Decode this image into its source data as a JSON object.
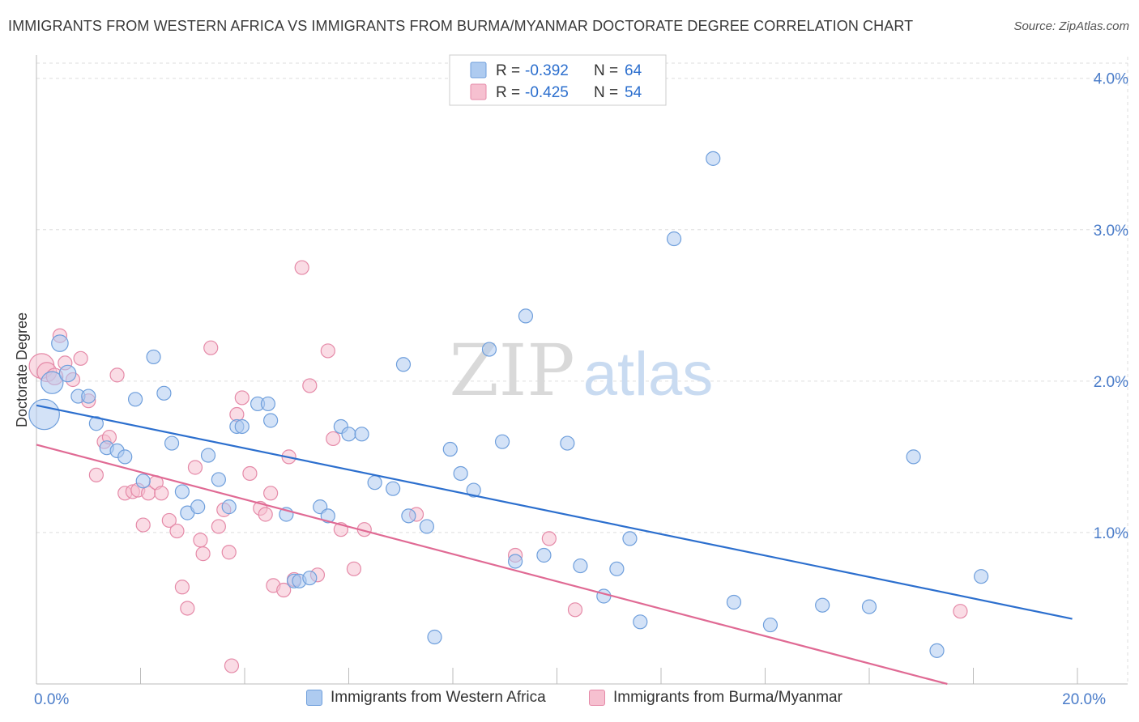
{
  "title": "IMMIGRANTS FROM WESTERN AFRICA VS IMMIGRANTS FROM BURMA/MYANMAR DOCTORATE DEGREE CORRELATION CHART",
  "source": "Source: ZipAtlas.com",
  "watermark": {
    "zip": "ZIP",
    "atlas": "atlas"
  },
  "colors": {
    "blue_fill": "#aecbf0",
    "blue_stroke": "#6f9fdc",
    "blue_line": "#2c6fce",
    "pink_fill": "#f6c0d0",
    "pink_stroke": "#e58aa8",
    "pink_line": "#e06a94",
    "axis_text": "#4a7cc9",
    "grid": "#dddddd"
  },
  "legend_stats": [
    {
      "r_label": "R =",
      "r_value": "-0.392",
      "n_label": "N =",
      "n_value": "64"
    },
    {
      "r_label": "R =",
      "r_value": "-0.425",
      "n_label": "N =",
      "n_value": "54"
    }
  ],
  "legend_bottom": [
    "Immigrants from Western Africa",
    "Immigrants from Burma/Myanmar"
  ],
  "chart_data": {
    "type": "scatter",
    "title": "IMMIGRANTS FROM WESTERN AFRICA VS IMMIGRANTS FROM BURMA/MYANMAR DOCTORATE DEGREE CORRELATION CHART",
    "xlabel": "",
    "ylabel": "Doctorate Degree",
    "xlim": [
      0,
      20
    ],
    "ylim": [
      0,
      4.1
    ],
    "x_tick_labels": [
      {
        "value": 0,
        "label": "0.0%"
      },
      {
        "value": 20,
        "label": "20.0%"
      }
    ],
    "y_ticks": [
      {
        "value": 1,
        "label": "1.0%"
      },
      {
        "value": 2,
        "label": "2.0%"
      },
      {
        "value": 3,
        "label": "3.0%"
      },
      {
        "value": 4,
        "label": "4.0%"
      }
    ],
    "series": [
      {
        "name": "Immigrants from Western Africa",
        "r": -0.392,
        "n": 64,
        "trend": {
          "x": [
            0,
            19.9
          ],
          "y": [
            1.84,
            0.43
          ]
        },
        "points": [
          [
            0.15,
            1.78,
            2.2
          ],
          [
            0.3,
            1.99,
            1.6
          ],
          [
            0.45,
            2.25,
            1.2
          ],
          [
            0.6,
            2.05,
            1.2
          ],
          [
            0.8,
            1.9,
            1
          ],
          [
            1.0,
            1.9,
            1
          ],
          [
            1.15,
            1.72,
            1
          ],
          [
            1.35,
            1.56,
            1
          ],
          [
            1.55,
            1.54,
            1
          ],
          [
            1.7,
            1.5,
            1
          ],
          [
            1.9,
            1.88,
            1
          ],
          [
            2.05,
            1.34,
            1
          ],
          [
            2.25,
            2.16,
            1
          ],
          [
            2.45,
            1.92,
            1
          ],
          [
            2.6,
            1.59,
            1
          ],
          [
            2.8,
            1.27,
            1
          ],
          [
            2.9,
            1.13,
            1
          ],
          [
            3.1,
            1.17,
            1
          ],
          [
            3.3,
            1.51,
            1
          ],
          [
            3.5,
            1.35,
            1
          ],
          [
            3.7,
            1.17,
            1
          ],
          [
            3.85,
            1.7,
            1
          ],
          [
            3.95,
            1.7,
            1
          ],
          [
            4.25,
            1.85,
            1
          ],
          [
            4.45,
            1.85,
            1
          ],
          [
            4.5,
            1.74,
            1
          ],
          [
            4.8,
            1.12,
            1
          ],
          [
            4.95,
            0.68,
            1
          ],
          [
            5.05,
            0.68,
            1
          ],
          [
            5.25,
            0.7,
            1
          ],
          [
            5.45,
            1.17,
            1
          ],
          [
            5.6,
            1.11,
            1
          ],
          [
            5.85,
            1.7,
            1
          ],
          [
            6.0,
            1.65,
            1
          ],
          [
            6.25,
            1.65,
            1
          ],
          [
            6.5,
            1.33,
            1
          ],
          [
            6.85,
            1.29,
            1
          ],
          [
            7.05,
            2.11,
            1
          ],
          [
            7.15,
            1.11,
            1
          ],
          [
            7.5,
            1.04,
            1
          ],
          [
            7.65,
            0.31,
            1
          ],
          [
            7.95,
            1.55,
            1
          ],
          [
            8.15,
            1.39,
            1
          ],
          [
            8.4,
            1.28,
            1
          ],
          [
            8.7,
            2.21,
            1
          ],
          [
            8.95,
            1.6,
            1
          ],
          [
            9.2,
            0.81,
            1
          ],
          [
            9.4,
            2.43,
            1
          ],
          [
            9.75,
            0.85,
            1
          ],
          [
            10.2,
            1.59,
            1
          ],
          [
            10.45,
            0.78,
            1
          ],
          [
            10.9,
            0.58,
            1
          ],
          [
            11.15,
            0.76,
            1
          ],
          [
            11.4,
            0.96,
            1
          ],
          [
            11.6,
            0.41,
            1
          ],
          [
            12.25,
            2.94,
            1
          ],
          [
            13.0,
            3.47,
            1
          ],
          [
            13.4,
            0.54,
            1
          ],
          [
            14.1,
            0.39,
            1
          ],
          [
            15.1,
            0.52,
            1
          ],
          [
            16.0,
            0.51,
            1
          ],
          [
            16.85,
            1.5,
            1
          ],
          [
            17.3,
            0.22,
            1
          ],
          [
            18.15,
            0.71,
            1
          ]
        ]
      },
      {
        "name": "Immigrants from Burma/Myanmar",
        "r": -0.425,
        "n": 54,
        "trend": {
          "x": [
            0,
            17.5
          ],
          "y": [
            1.58,
            0.0
          ]
        },
        "points": [
          [
            0.1,
            2.1,
            1.8
          ],
          [
            0.2,
            2.06,
            1.4
          ],
          [
            0.35,
            2.03,
            1.2
          ],
          [
            0.45,
            2.3,
            1
          ],
          [
            0.55,
            2.12,
            1
          ],
          [
            0.7,
            2.01,
            1
          ],
          [
            0.85,
            2.15,
            1
          ],
          [
            1.0,
            1.87,
            1
          ],
          [
            1.15,
            1.38,
            1
          ],
          [
            1.3,
            1.6,
            1
          ],
          [
            1.4,
            1.63,
            1
          ],
          [
            1.55,
            2.04,
            1
          ],
          [
            1.7,
            1.26,
            1
          ],
          [
            1.85,
            1.27,
            1
          ],
          [
            1.95,
            1.28,
            1
          ],
          [
            2.05,
            1.05,
            1
          ],
          [
            2.15,
            1.26,
            1
          ],
          [
            2.3,
            1.33,
            1
          ],
          [
            2.4,
            1.26,
            1
          ],
          [
            2.55,
            1.08,
            1
          ],
          [
            2.7,
            1.01,
            1
          ],
          [
            2.8,
            0.64,
            1
          ],
          [
            2.9,
            0.5,
            1
          ],
          [
            3.05,
            1.43,
            1
          ],
          [
            3.15,
            0.95,
            1
          ],
          [
            3.2,
            0.86,
            1
          ],
          [
            3.35,
            2.22,
            1
          ],
          [
            3.5,
            1.04,
            1
          ],
          [
            3.6,
            1.15,
            1
          ],
          [
            3.7,
            0.87,
            1
          ],
          [
            3.85,
            1.78,
            1
          ],
          [
            3.95,
            1.89,
            1
          ],
          [
            4.1,
            1.39,
            1
          ],
          [
            4.3,
            1.16,
            1
          ],
          [
            4.4,
            1.12,
            1
          ],
          [
            4.5,
            1.26,
            1
          ],
          [
            4.55,
            0.65,
            1
          ],
          [
            4.75,
            0.62,
            1
          ],
          [
            4.85,
            1.5,
            1
          ],
          [
            4.95,
            0.69,
            1
          ],
          [
            5.1,
            2.75,
            1
          ],
          [
            5.25,
            1.97,
            1
          ],
          [
            5.4,
            0.72,
            1
          ],
          [
            5.6,
            2.2,
            1
          ],
          [
            5.7,
            1.62,
            1
          ],
          [
            5.85,
            1.02,
            1
          ],
          [
            6.1,
            0.76,
            1
          ],
          [
            6.3,
            1.02,
            1
          ],
          [
            7.3,
            1.12,
            1
          ],
          [
            9.2,
            0.85,
            1
          ],
          [
            9.85,
            0.96,
            1
          ],
          [
            10.35,
            0.49,
            1
          ],
          [
            17.75,
            0.48,
            1
          ],
          [
            3.75,
            0.12,
            1
          ]
        ]
      }
    ]
  }
}
